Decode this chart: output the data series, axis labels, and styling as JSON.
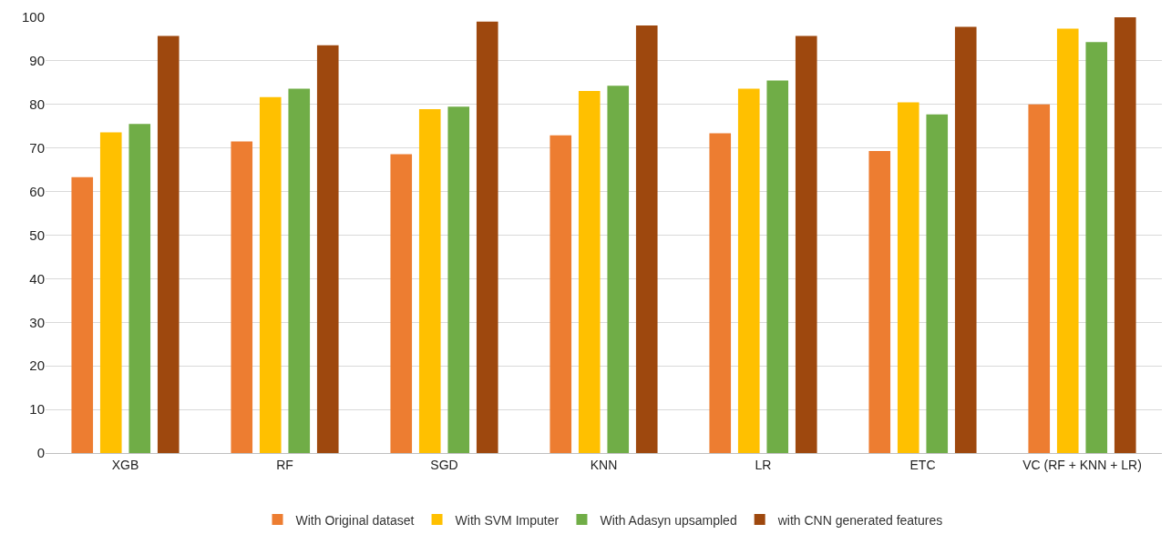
{
  "chart_data": {
    "type": "bar",
    "categories": [
      "XGB",
      "RF",
      "SGD",
      "KNN",
      "LR",
      "ETC",
      "VC (RF + KNN + LR)"
    ],
    "series": [
      {
        "name": "With Original dataset",
        "color": "#ed7d31",
        "values": [
          63.3,
          71.5,
          68.6,
          72.9,
          73.4,
          69.3,
          80.0
        ]
      },
      {
        "name": "With SVM Imputer",
        "color": "#ffc000",
        "values": [
          73.6,
          81.7,
          78.9,
          83.1,
          83.6,
          80.5,
          97.4
        ]
      },
      {
        "name": "With Adasyn upsampled",
        "color": "#70ad47",
        "values": [
          75.5,
          83.6,
          79.5,
          84.3,
          85.5,
          77.7,
          94.3
        ]
      },
      {
        "name": "with CNN generated features",
        "color": "#9e480e",
        "values": [
          95.7,
          93.6,
          99.0,
          98.1,
          95.7,
          97.8,
          100
        ]
      }
    ],
    "ylim": [
      0,
      100
    ],
    "yticks": [
      0,
      10,
      20,
      30,
      40,
      50,
      60,
      70,
      80,
      90,
      100
    ],
    "grid": "y",
    "legend": "bottom"
  }
}
